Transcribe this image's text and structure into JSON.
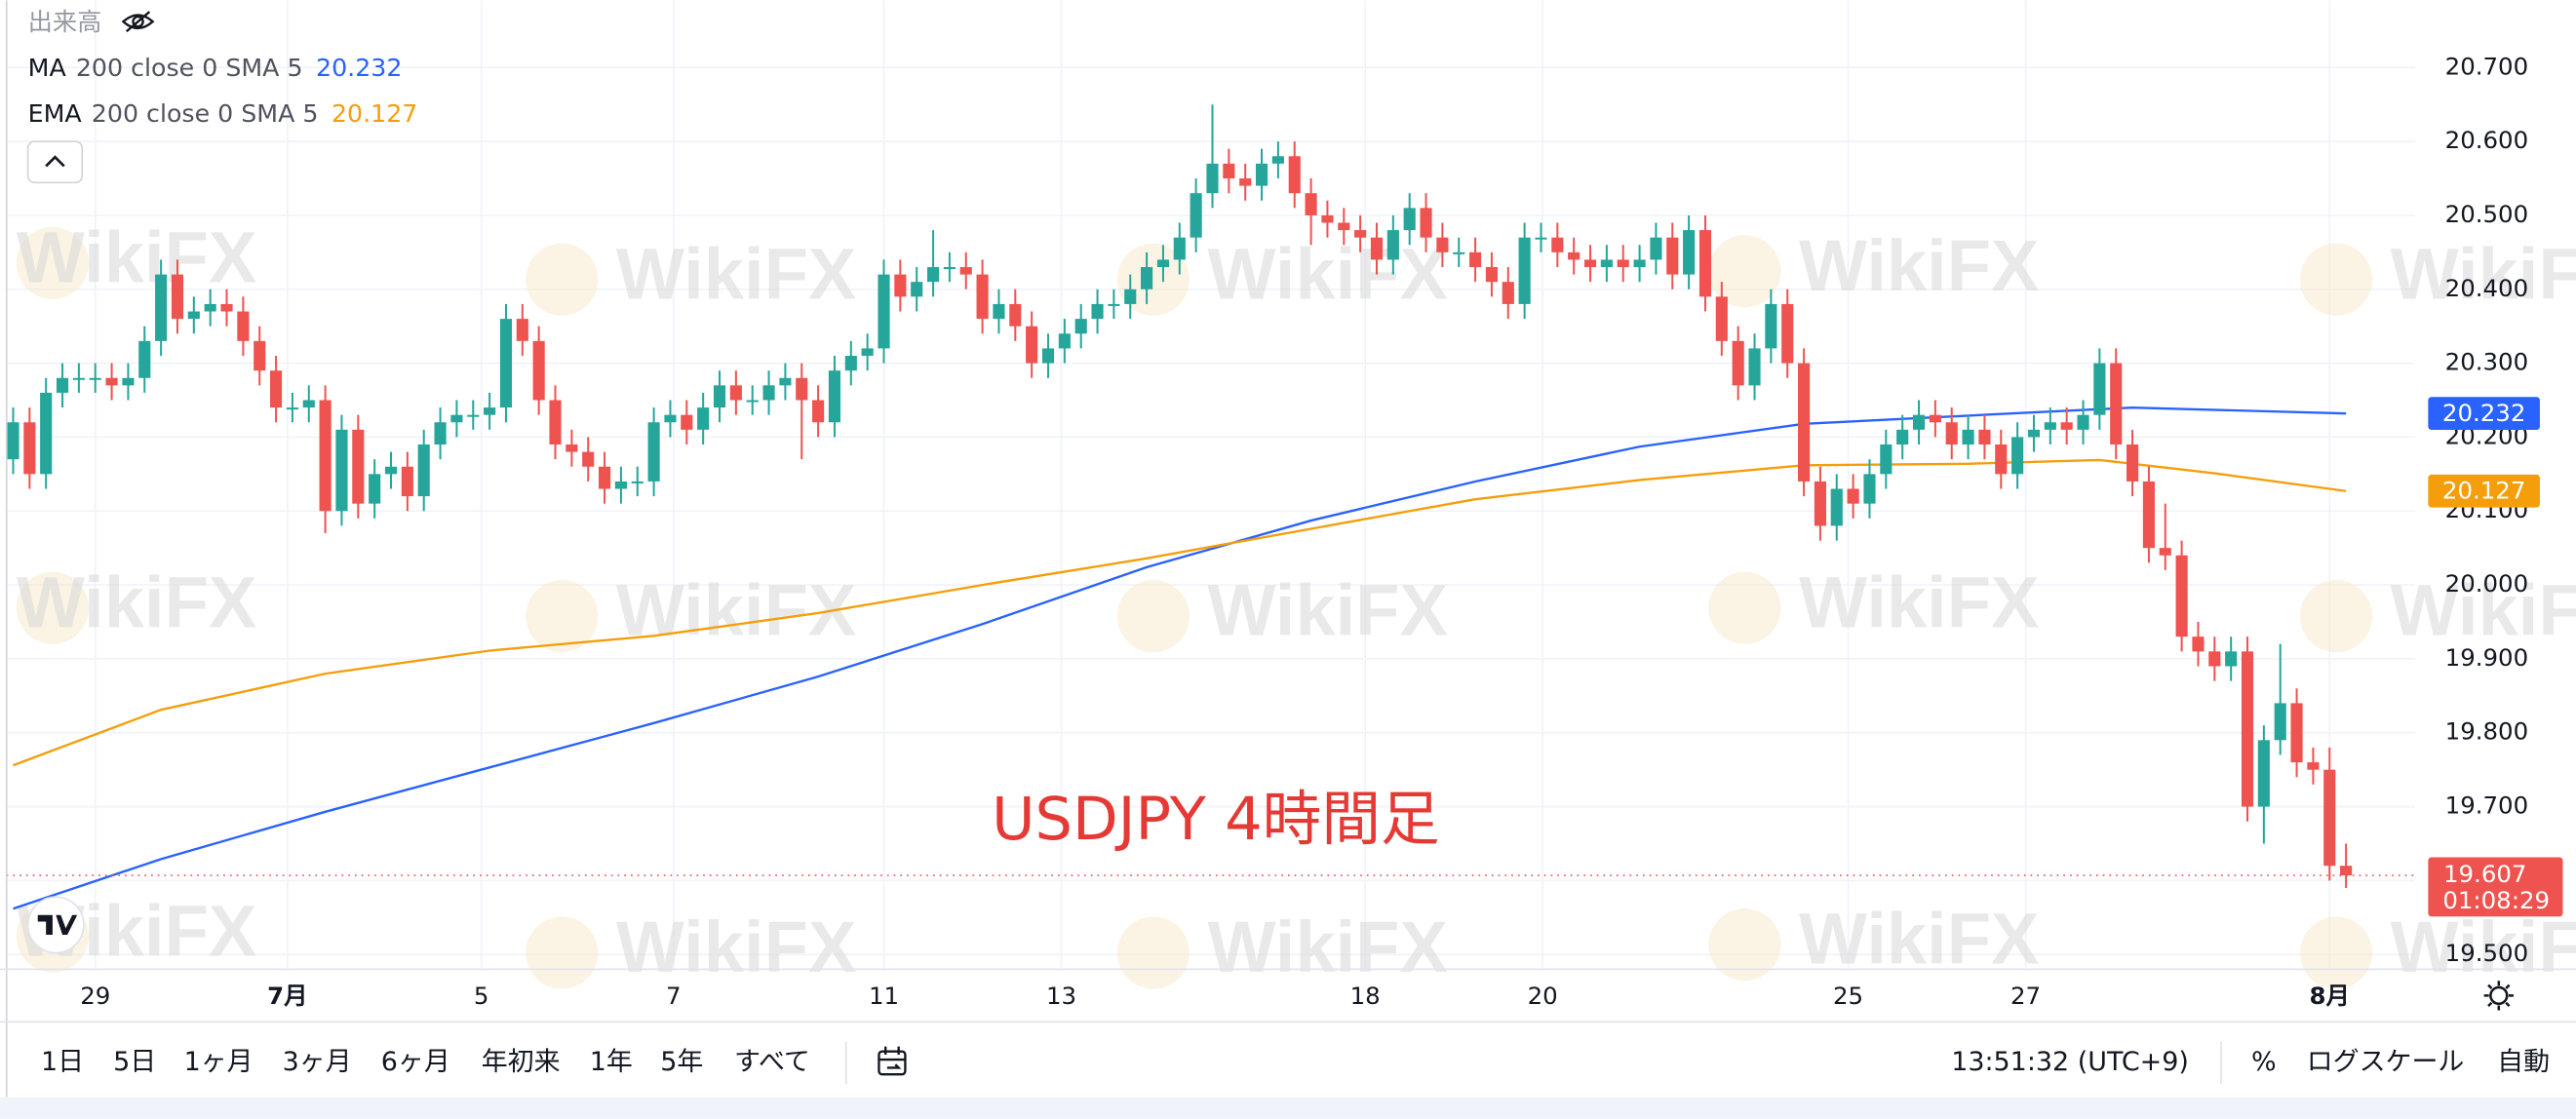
{
  "volume_label": "出来高",
  "watermark": "WikiFX",
  "chart_data": {
    "type": "candlestick",
    "annotation": "USDJPY 4時間足",
    "countdown": "01:08:29",
    "up_color": "#26a69a",
    "down_color": "#ef5350",
    "xlim": [
      0,
      142
    ],
    "xticks": [
      {
        "value": 5,
        "label": "29"
      },
      {
        "value": 16.7,
        "label": "7月"
      },
      {
        "value": 28.5,
        "label": "5"
      },
      {
        "value": 40.2,
        "label": "7"
      },
      {
        "value": 53,
        "label": "11"
      },
      {
        "value": 63.8,
        "label": "13"
      },
      {
        "value": 82.3,
        "label": "18"
      },
      {
        "value": 93.1,
        "label": "20"
      },
      {
        "value": 111.7,
        "label": "25"
      },
      {
        "value": 122.5,
        "label": "27"
      },
      {
        "value": 141,
        "label": "8月"
      }
    ],
    "ylim": [
      19.48,
      20.791
    ],
    "yticks": [
      {
        "value": 19.5,
        "label": "19.500"
      },
      {
        "value": 19.6,
        "label": "19.600"
      },
      {
        "value": 19.7,
        "label": "19.700"
      },
      {
        "value": 19.8,
        "label": "19.800"
      },
      {
        "value": 19.9,
        "label": "19.900"
      },
      {
        "value": 20.0,
        "label": "20.000"
      },
      {
        "value": 20.1,
        "label": "20.100"
      },
      {
        "value": 20.2,
        "label": "20.200"
      },
      {
        "value": 20.3,
        "label": "20.300"
      },
      {
        "value": 20.4,
        "label": "20.400"
      },
      {
        "value": 20.5,
        "label": "20.500"
      },
      {
        "value": 20.6,
        "label": "20.600"
      },
      {
        "value": 20.7,
        "label": "20.700"
      }
    ],
    "grid": true,
    "open": [
      20.17,
      20.22,
      20.15,
      20.26,
      20.28,
      20.28,
      20.28,
      20.27,
      20.28,
      20.33,
      20.42,
      20.36,
      20.37,
      20.38,
      20.37,
      20.33,
      20.29,
      20.24,
      20.24,
      20.25,
      20.1,
      20.21,
      20.11,
      20.15,
      20.16,
      20.12,
      20.19,
      20.22,
      20.23,
      20.23,
      20.24,
      20.36,
      20.33,
      20.25,
      20.19,
      20.18,
      20.16,
      20.13,
      20.14,
      20.14,
      20.22,
      20.23,
      20.21,
      20.24,
      20.27,
      20.25,
      20.25,
      20.27,
      20.28,
      20.25,
      20.22,
      20.29,
      20.31,
      20.32,
      20.42,
      20.39,
      20.41,
      20.43,
      20.43,
      20.42,
      20.36,
      20.38,
      20.35,
      20.3,
      20.32,
      20.34,
      20.36,
      20.38,
      20.38,
      20.4,
      20.43,
      20.44,
      20.47,
      20.53,
      20.57,
      20.55,
      20.54,
      20.57,
      20.58,
      20.53,
      20.5,
      20.49,
      20.48,
      20.47,
      20.44,
      20.48,
      20.51,
      20.47,
      20.45,
      20.45,
      20.43,
      20.41,
      20.38,
      20.47,
      20.47,
      20.45,
      20.44,
      20.43,
      20.44,
      20.43,
      20.44,
      20.47,
      20.42,
      20.48,
      20.39,
      20.33,
      20.27,
      20.32,
      20.38,
      20.3,
      20.14,
      20.08,
      20.13,
      20.11,
      20.15,
      20.19,
      20.21,
      20.23,
      20.22,
      20.19,
      20.21,
      20.19,
      20.15,
      20.2,
      20.21,
      20.22,
      20.21,
      20.23,
      20.3,
      20.19,
      20.14,
      20.05,
      20.04,
      19.93,
      19.91,
      19.89,
      19.91,
      19.7,
      19.79,
      19.84,
      19.76,
      19.75,
      19.62
    ],
    "high": [
      20.24,
      20.24,
      20.28,
      20.3,
      20.3,
      20.3,
      20.3,
      20.3,
      20.35,
      20.44,
      20.44,
      20.39,
      20.4,
      20.4,
      20.39,
      20.35,
      20.31,
      20.26,
      20.27,
      20.27,
      20.23,
      20.23,
      20.17,
      20.18,
      20.18,
      20.21,
      20.24,
      20.25,
      20.25,
      20.26,
      20.38,
      20.38,
      20.35,
      20.27,
      20.21,
      20.2,
      20.18,
      20.16,
      20.16,
      20.24,
      20.25,
      20.25,
      20.26,
      20.29,
      20.29,
      20.27,
      20.29,
      20.3,
      20.3,
      20.27,
      20.31,
      20.33,
      20.34,
      20.44,
      20.44,
      20.43,
      20.48,
      20.45,
      20.45,
      20.44,
      20.4,
      20.4,
      20.37,
      20.34,
      20.36,
      20.38,
      20.4,
      20.4,
      20.42,
      20.45,
      20.46,
      20.49,
      20.55,
      20.65,
      20.59,
      20.57,
      20.59,
      20.6,
      20.6,
      20.55,
      20.52,
      20.51,
      20.5,
      20.49,
      20.5,
      20.53,
      20.53,
      20.49,
      20.47,
      20.47,
      20.45,
      20.43,
      20.49,
      20.49,
      20.49,
      20.47,
      20.46,
      20.46,
      20.46,
      20.46,
      20.49,
      20.49,
      20.5,
      20.5,
      20.41,
      20.35,
      20.34,
      20.4,
      20.4,
      20.32,
      20.16,
      20.15,
      20.15,
      20.17,
      20.21,
      20.23,
      20.25,
      20.25,
      20.24,
      20.23,
      20.23,
      20.21,
      20.22,
      20.23,
      20.24,
      20.24,
      20.25,
      20.32,
      20.32,
      20.21,
      20.16,
      20.11,
      20.06,
      19.95,
      19.93,
      19.93,
      19.93,
      19.81,
      19.92,
      19.86,
      19.78,
      19.78,
      19.65
    ],
    "low": [
      20.15,
      20.13,
      20.13,
      20.24,
      20.26,
      20.26,
      20.25,
      20.25,
      20.26,
      20.31,
      20.34,
      20.34,
      20.35,
      20.35,
      20.31,
      20.27,
      20.22,
      20.22,
      20.22,
      20.07,
      20.08,
      20.09,
      20.09,
      20.13,
      20.1,
      20.1,
      20.17,
      20.2,
      20.21,
      20.21,
      20.22,
      20.31,
      20.23,
      20.17,
      20.16,
      20.14,
      20.11,
      20.11,
      20.12,
      20.12,
      20.2,
      20.19,
      20.19,
      20.22,
      20.23,
      20.23,
      20.23,
      20.25,
      20.17,
      20.2,
      20.2,
      20.27,
      20.29,
      20.3,
      20.37,
      20.37,
      20.39,
      20.41,
      20.4,
      20.34,
      20.34,
      20.33,
      20.28,
      20.28,
      20.3,
      20.32,
      20.34,
      20.36,
      20.36,
      20.38,
      20.41,
      20.42,
      20.45,
      20.51,
      20.53,
      20.52,
      20.52,
      20.55,
      20.51,
      20.46,
      20.47,
      20.46,
      20.45,
      20.42,
      20.42,
      20.46,
      20.45,
      20.43,
      20.43,
      20.41,
      20.39,
      20.36,
      20.36,
      20.45,
      20.43,
      20.42,
      20.41,
      20.41,
      20.41,
      20.41,
      20.42,
      20.4,
      20.4,
      20.37,
      20.31,
      20.25,
      20.25,
      20.3,
      20.28,
      20.12,
      20.06,
      20.06,
      20.09,
      20.09,
      20.13,
      20.17,
      20.19,
      20.2,
      20.17,
      20.17,
      20.17,
      20.13,
      20.13,
      20.18,
      20.19,
      20.19,
      20.19,
      20.21,
      20.17,
      20.12,
      20.03,
      20.02,
      19.91,
      19.89,
      19.87,
      19.87,
      19.68,
      19.65,
      19.77,
      19.74,
      19.73,
      19.6,
      19.59
    ],
    "close": [
      20.22,
      20.15,
      20.26,
      20.28,
      20.28,
      20.28,
      20.27,
      20.28,
      20.33,
      20.42,
      20.36,
      20.37,
      20.38,
      20.37,
      20.33,
      20.29,
      20.24,
      20.24,
      20.25,
      20.1,
      20.21,
      20.11,
      20.15,
      20.16,
      20.12,
      20.19,
      20.22,
      20.23,
      20.23,
      20.24,
      20.36,
      20.33,
      20.25,
      20.19,
      20.18,
      20.16,
      20.13,
      20.14,
      20.14,
      20.22,
      20.23,
      20.21,
      20.24,
      20.27,
      20.25,
      20.25,
      20.27,
      20.28,
      20.25,
      20.22,
      20.29,
      20.31,
      20.32,
      20.42,
      20.39,
      20.41,
      20.43,
      20.43,
      20.42,
      20.36,
      20.38,
      20.35,
      20.3,
      20.32,
      20.34,
      20.36,
      20.38,
      20.38,
      20.4,
      20.43,
      20.44,
      20.47,
      20.53,
      20.57,
      20.55,
      20.54,
      20.57,
      20.58,
      20.53,
      20.5,
      20.49,
      20.48,
      20.47,
      20.44,
      20.48,
      20.51,
      20.47,
      20.45,
      20.45,
      20.43,
      20.41,
      20.38,
      20.47,
      20.47,
      20.45,
      20.44,
      20.43,
      20.44,
      20.43,
      20.44,
      20.47,
      20.42,
      20.48,
      20.39,
      20.33,
      20.27,
      20.32,
      20.38,
      20.3,
      20.14,
      20.08,
      20.13,
      20.11,
      20.15,
      20.19,
      20.21,
      20.23,
      20.22,
      20.19,
      20.21,
      20.19,
      20.15,
      20.2,
      20.21,
      20.22,
      20.21,
      20.23,
      20.3,
      20.19,
      20.14,
      20.05,
      20.04,
      19.93,
      19.91,
      19.89,
      19.91,
      19.7,
      19.79,
      19.84,
      19.76,
      19.75,
      19.62,
      19.607
    ],
    "series": [
      {
        "name": "MA",
        "params": "200 close 0 SMA 5",
        "color": "#2962ff",
        "x": [
          0,
          9,
          19,
          29,
          39,
          49,
          59,
          69,
          79,
          89,
          99,
          109,
          119,
          129,
          142
        ],
        "values": [
          19.562,
          19.629,
          19.693,
          19.753,
          19.813,
          19.876,
          19.947,
          20.024,
          20.087,
          20.14,
          20.187,
          20.218,
          20.229,
          20.24,
          20.232
        ]
      },
      {
        "name": "EMA",
        "params": "200 close 0 SMA 5",
        "color": "#f59e0b",
        "x": [
          0,
          9,
          19,
          29,
          39,
          49,
          59,
          69,
          79,
          89,
          99,
          109,
          119,
          127,
          134,
          142
        ],
        "values": [
          19.756,
          19.831,
          19.88,
          19.911,
          19.931,
          19.962,
          20.0,
          20.036,
          20.076,
          20.116,
          20.142,
          20.162,
          20.164,
          20.169,
          20.151,
          20.127
        ]
      }
    ]
  },
  "toolbar": {
    "ranges": [
      "1日",
      "5日",
      "1ヶ月",
      "3ヶ月",
      "6ヶ月",
      "年初来",
      "1年",
      "5年",
      "すべて"
    ],
    "time": "13:51:32 (UTC+9)",
    "percent": "%",
    "log_scale": "ログスケール",
    "auto": "自動"
  }
}
